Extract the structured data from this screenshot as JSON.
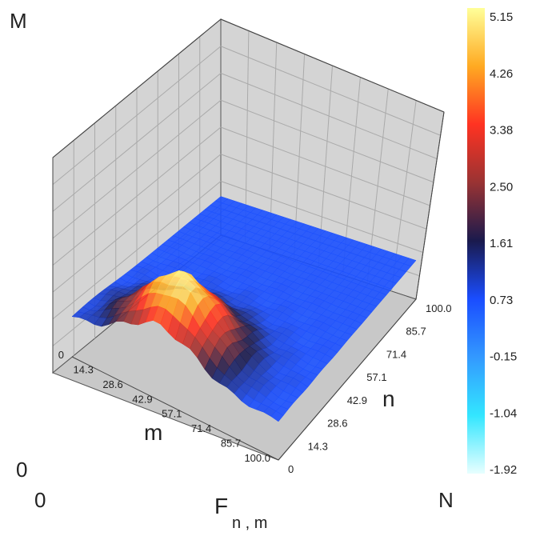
{
  "chart_data": {
    "type": "surface",
    "x_axis": {
      "label": "m",
      "ticks": [
        "0",
        "14.3",
        "28.6",
        "42.9",
        "57.1",
        "71.4",
        "85.7",
        "100.0"
      ],
      "range": [
        0,
        100
      ]
    },
    "y_axis": {
      "label": "n",
      "ticks": [
        "0",
        "14.3",
        "28.6",
        "42.9",
        "57.1",
        "71.4",
        "85.7",
        "100.0"
      ],
      "range": [
        0,
        100
      ]
    },
    "z_range": [
      -1.92,
      5.15
    ],
    "grid": true,
    "colorbar": {
      "ticks": [
        "5.15",
        "4.26",
        "3.38",
        "2.50",
        "1.61",
        "0.73",
        "-0.15",
        "-1.04",
        "-1.92"
      ],
      "range": [
        -1.92,
        5.15
      ],
      "colors": [
        "#e8ffff",
        "#33e6ff",
        "#3399ff",
        "#1a4dff",
        "#1a1a4d",
        "#993333",
        "#ff3322",
        "#ffaa22",
        "#ffff99"
      ]
    },
    "surface": {
      "peak": {
        "x": 43,
        "y": 14,
        "z": 5.15
      },
      "baseline_z": 0.7
    }
  },
  "labels": {
    "corner_top_left": "M",
    "corner_bottom_left_upper": "0",
    "corner_bottom_left_lower": "0",
    "corner_bottom_right": "N",
    "formula_main": "F",
    "formula_sub": "n , m"
  }
}
